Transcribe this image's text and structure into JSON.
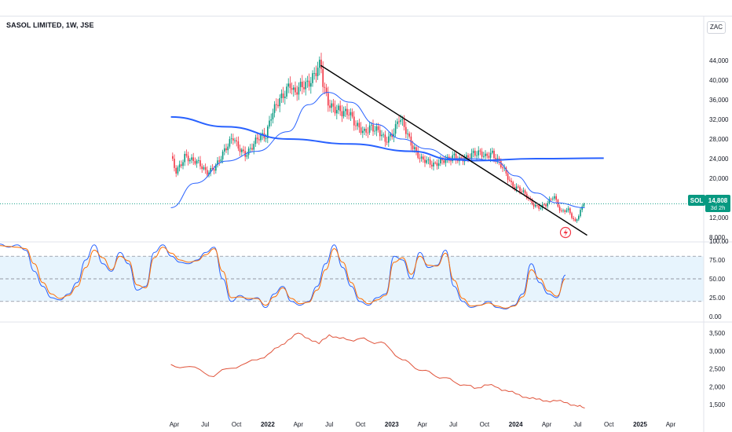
{
  "header": {
    "title": "SASOL LIMITED, 1W, JSE",
    "currency": "ZAC"
  },
  "price_label": {
    "symbol": "SOL",
    "price": "14,808",
    "countdown": "3d 2h",
    "value": 14808
  },
  "icons": {
    "alert": "lightning-alert-icon"
  },
  "colors": {
    "up": "#089981",
    "down": "#f23645",
    "ma": "#2962ff",
    "stoch_k": "#2962ff",
    "stoch_d": "#ff6d00",
    "line": "#e0533a",
    "trend": "#000000"
  },
  "x_axis": {
    "labels": [
      "Apr",
      "Jul",
      "Oct",
      "2022",
      "Apr",
      "Jul",
      "Oct",
      "2023",
      "Apr",
      "Jul",
      "Oct",
      "2024",
      "Apr",
      "Jul",
      "Oct",
      "2025",
      "Apr"
    ],
    "bold": [
      "2022",
      "2023",
      "2024",
      "2025"
    ]
  },
  "chart_data": [
    {
      "type": "candlestick",
      "title": "SASOL LIMITED, 1W, JSE",
      "unit": "ZAC",
      "yticks": [
        "44,000",
        "40,000",
        "36,000",
        "32,000",
        "28,000",
        "24,000",
        "20,000",
        "16,000",
        "12,000",
        "8,000"
      ],
      "ylim": [
        8000,
        46000
      ],
      "grid": false,
      "close_path": [
        [
          "2021-03-22",
          24500
        ],
        [
          "2021-04-05",
          21000
        ],
        [
          "2021-04-19",
          22500
        ],
        [
          "2021-05-03",
          25000
        ],
        [
          "2021-05-24",
          23500
        ],
        [
          "2021-06-14",
          22800
        ],
        [
          "2021-07-05",
          21500
        ],
        [
          "2021-07-26",
          21800
        ],
        [
          "2021-08-09",
          23000
        ],
        [
          "2021-08-30",
          26500
        ],
        [
          "2021-09-20",
          28500
        ],
        [
          "2021-10-04",
          26000
        ],
        [
          "2021-10-25",
          25000
        ],
        [
          "2021-11-15",
          26500
        ],
        [
          "2021-12-06",
          28000
        ],
        [
          "2021-12-27",
          29000
        ],
        [
          "2022-01-10",
          33000
        ],
        [
          "2022-01-31",
          35000
        ],
        [
          "2022-02-14",
          36500
        ],
        [
          "2022-03-07",
          40000
        ],
        [
          "2022-03-21",
          37000
        ],
        [
          "2022-04-11",
          38500
        ],
        [
          "2022-05-02",
          40000
        ],
        [
          "2022-05-23",
          41500
        ],
        [
          "2022-06-06",
          42800
        ],
        [
          "2022-06-13",
          39000
        ],
        [
          "2022-06-27",
          36000
        ],
        [
          "2022-07-18",
          34000
        ],
        [
          "2022-08-08",
          33000
        ],
        [
          "2022-08-29",
          34000
        ],
        [
          "2022-09-19",
          30500
        ],
        [
          "2022-10-10",
          29000
        ],
        [
          "2022-10-31",
          31000
        ],
        [
          "2022-11-21",
          29500
        ],
        [
          "2022-12-12",
          27500
        ],
        [
          "2023-01-09",
          30000
        ],
        [
          "2023-01-23",
          32000
        ],
        [
          "2023-02-13",
          29500
        ],
        [
          "2023-03-06",
          26500
        ],
        [
          "2023-03-27",
          23500
        ],
        [
          "2023-04-17",
          23500
        ],
        [
          "2023-05-08",
          23000
        ],
        [
          "2023-05-29",
          23200
        ],
        [
          "2023-06-19",
          24000
        ],
        [
          "2023-07-03",
          25000
        ],
        [
          "2023-07-17",
          23500
        ],
        [
          "2023-08-07",
          23800
        ],
        [
          "2023-08-28",
          25500
        ],
        [
          "2023-09-18",
          25000
        ],
        [
          "2023-10-02",
          24000
        ],
        [
          "2023-10-23",
          25500
        ],
        [
          "2023-11-06",
          24000
        ],
        [
          "2023-11-27",
          21500
        ],
        [
          "2023-12-18",
          19000
        ],
        [
          "2024-01-08",
          18000
        ],
        [
          "2024-01-29",
          16500
        ],
        [
          "2024-02-19",
          15000
        ],
        [
          "2024-03-11",
          14000
        ],
        [
          "2024-04-01",
          14500
        ],
        [
          "2024-04-22",
          16800
        ],
        [
          "2024-05-13",
          13000
        ],
        [
          "2024-06-03",
          13500
        ],
        [
          "2024-06-24",
          11200
        ],
        [
          "2024-07-08",
          13200
        ],
        [
          "2024-07-22",
          14808
        ]
      ],
      "series": [
        {
          "name": "",
          "style": "moving-average",
          "points": [
            [
              "2021-03-22",
              14000
            ],
            [
              "2021-06-01",
              19000
            ],
            [
              "2021-09-01",
              23500
            ],
            [
              "2021-12-01",
              25500
            ],
            [
              "2022-03-01",
              29500
            ],
            [
              "2022-05-01",
              35000
            ],
            [
              "2022-06-27",
              37500
            ],
            [
              "2022-09-01",
              35500
            ],
            [
              "2022-11-15",
              31000
            ],
            [
              "2023-02-01",
              28000
            ],
            [
              "2023-04-15",
              26000
            ],
            [
              "2023-07-01",
              24000
            ],
            [
              "2023-09-01",
              24000
            ],
            [
              "2023-11-01",
              23500
            ],
            [
              "2024-01-01",
              20500
            ],
            [
              "2024-03-01",
              17000
            ],
            [
              "2024-05-01",
              15000
            ],
            [
              "2024-07-22",
              14000
            ]
          ]
        },
        {
          "name": "",
          "style": "long-moving-average",
          "points": [
            [
              "2021-03-22",
              32500
            ],
            [
              "2021-09-01",
              30500
            ],
            [
              "2022-03-01",
              28000
            ],
            [
              "2022-09-01",
              27000
            ],
            [
              "2023-03-01",
              25500
            ],
            [
              "2023-07-01",
              23800
            ],
            [
              "2023-09-01",
              23600
            ],
            [
              "2024-03-01",
              24000
            ],
            [
              "2024-09-16",
              24100
            ]
          ]
        }
      ],
      "trendline": {
        "from": [
          "2022-06-06",
          43000
        ],
        "to": [
          "2024-07-29",
          8400
        ]
      }
    },
    {
      "type": "line",
      "title": "",
      "yticks": [
        "100.00",
        "75.00",
        "50.00",
        "25.00",
        "0.00"
      ],
      "ylim": [
        0,
        100
      ],
      "band": [
        20,
        80
      ],
      "midline": 50,
      "series": [
        {
          "name": "",
          "values": [
            96,
            92,
            95,
            88,
            60,
            40,
            25,
            22,
            30,
            45,
            75,
            95,
            70,
            60,
            85,
            70,
            35,
            40,
            85,
            95,
            80,
            72,
            70,
            75,
            85,
            92,
            50,
            20,
            28,
            22,
            25,
            12,
            30,
            40,
            20,
            15,
            20,
            40,
            70,
            95,
            65,
            40,
            20,
            15,
            25,
            30,
            80,
            75,
            50,
            85,
            65,
            68,
            88,
            40,
            20,
            12,
            15,
            20,
            12,
            10,
            15,
            30,
            70,
            45,
            30,
            25,
            55
          ]
        },
        {
          "name": "",
          "values": [
            94,
            93,
            92,
            90,
            70,
            45,
            30,
            24,
            28,
            40,
            65,
            88,
            78,
            62,
            80,
            74,
            42,
            38,
            78,
            92,
            84,
            75,
            72,
            74,
            82,
            90,
            60,
            25,
            26,
            24,
            24,
            15,
            26,
            38,
            24,
            17,
            19,
            35,
            62,
            90,
            72,
            45,
            24,
            17,
            22,
            28,
            72,
            78,
            56,
            80,
            68,
            67,
            84,
            48,
            24,
            14,
            15,
            18,
            14,
            11,
            14,
            26,
            62,
            50,
            34,
            27,
            50
          ]
        }
      ]
    },
    {
      "type": "line",
      "title": "",
      "yticks": [
        "3,500",
        "3,000",
        "2,500",
        "2,000",
        "1,500"
      ],
      "ylim": [
        1300,
        3700
      ],
      "series": [
        {
          "name": "",
          "points": [
            [
              "2021-03-22",
              2620
            ],
            [
              "2021-05-01",
              2550
            ],
            [
              "2021-06-15",
              2480
            ],
            [
              "2021-07-26",
              2280
            ],
            [
              "2021-09-01",
              2500
            ],
            [
              "2021-10-15",
              2600
            ],
            [
              "2021-12-01",
              2750
            ],
            [
              "2022-01-01",
              2900
            ],
            [
              "2022-02-01",
              3100
            ],
            [
              "2022-03-01",
              3300
            ],
            [
              "2022-04-01",
              3500
            ],
            [
              "2022-05-01",
              3350
            ],
            [
              "2022-06-01",
              3200
            ],
            [
              "2022-07-01",
              3450
            ],
            [
              "2022-08-01",
              3350
            ],
            [
              "2022-09-01",
              3300
            ],
            [
              "2022-10-01",
              3350
            ],
            [
              "2022-11-01",
              3250
            ],
            [
              "2022-12-01",
              3250
            ],
            [
              "2023-01-01",
              3000
            ],
            [
              "2023-02-01",
              2750
            ],
            [
              "2023-03-01",
              2600
            ],
            [
              "2023-04-01",
              2450
            ],
            [
              "2023-05-01",
              2350
            ],
            [
              "2023-06-01",
              2250
            ],
            [
              "2023-07-01",
              2150
            ],
            [
              "2023-08-01",
              2050
            ],
            [
              "2023-09-01",
              1950
            ],
            [
              "2023-10-01",
              2050
            ],
            [
              "2023-11-01",
              2000
            ],
            [
              "2023-12-01",
              1900
            ],
            [
              "2024-01-01",
              1800
            ],
            [
              "2024-02-01",
              1700
            ],
            [
              "2024-03-01",
              1650
            ],
            [
              "2024-04-01",
              1600
            ],
            [
              "2024-05-01",
              1600
            ],
            [
              "2024-06-01",
              1550
            ],
            [
              "2024-07-01",
              1450
            ],
            [
              "2024-07-22",
              1400
            ]
          ]
        }
      ]
    }
  ]
}
